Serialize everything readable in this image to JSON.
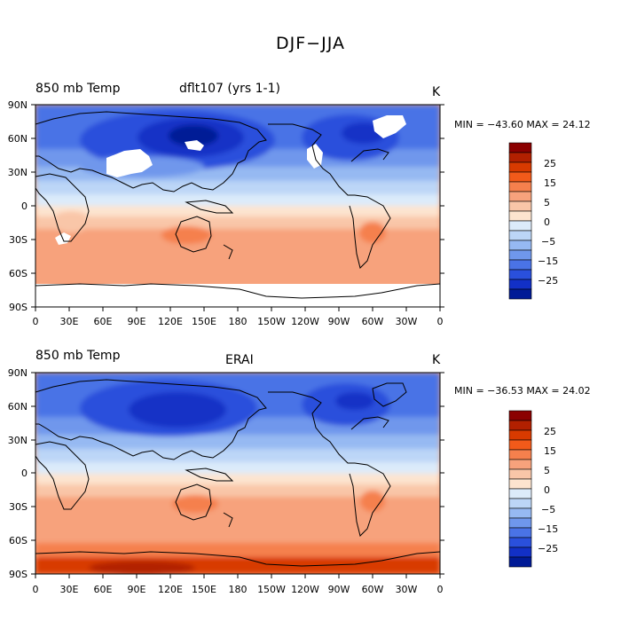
{
  "title": "DJF−JJA",
  "panels": [
    {
      "variable": "850 mb Temp",
      "case": "dflt107 (yrs 1-1)",
      "units": "K",
      "stats": "MIN = −43.60 MAX =  24.12"
    },
    {
      "variable": "850 mb Temp",
      "case": "ERAI",
      "units": "K",
      "stats": "MIN = −36.53 MAX =  24.02"
    }
  ],
  "axes": {
    "lat_labels": [
      "90N",
      "60N",
      "30N",
      "0",
      "30S",
      "60S",
      "90S"
    ],
    "lon_labels": [
      "0",
      "30E",
      "60E",
      "90E",
      "120E",
      "150E",
      "180",
      "150W",
      "120W",
      "90W",
      "60W",
      "30W",
      "0"
    ]
  },
  "colorbar": {
    "labels": [
      "25",
      "15",
      "5",
      "0",
      "−5",
      "−15",
      "−25"
    ],
    "colors": [
      "#8b0000",
      "#b22000",
      "#d83a00",
      "#f25a1a",
      "#f5804d",
      "#f7a27c",
      "#f9c6a8",
      "#fde4cf",
      "#dcebfa",
      "#bcd6f7",
      "#96b9f2",
      "#6f97ec",
      "#4a73e6",
      "#2a50dc",
      "#1230c6",
      "#001a96"
    ]
  },
  "colors": {
    "antarctic_warm_model": "#f7a27c",
    "antarctic_warm_erai": "#d83a00",
    "missing": "#ffffff",
    "coastline": "#000000"
  }
}
